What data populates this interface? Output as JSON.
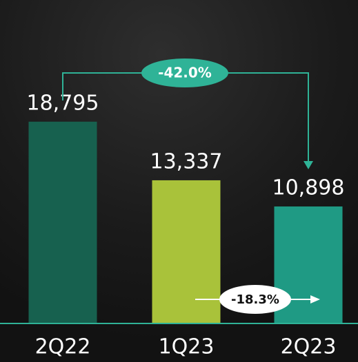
{
  "chart_data": {
    "type": "bar",
    "categories": [
      "2Q22",
      "1Q23",
      "2Q23"
    ],
    "values": [
      18795,
      13337,
      10898
    ],
    "value_labels": [
      "18,795",
      "13,337",
      "10,898"
    ],
    "colors": [
      "#17614f",
      "#a9c23a",
      "#1f9a84"
    ],
    "ylim": [
      0,
      25000
    ],
    "annotations": [
      "-42.0%",
      "-18.3%"
    ]
  }
}
